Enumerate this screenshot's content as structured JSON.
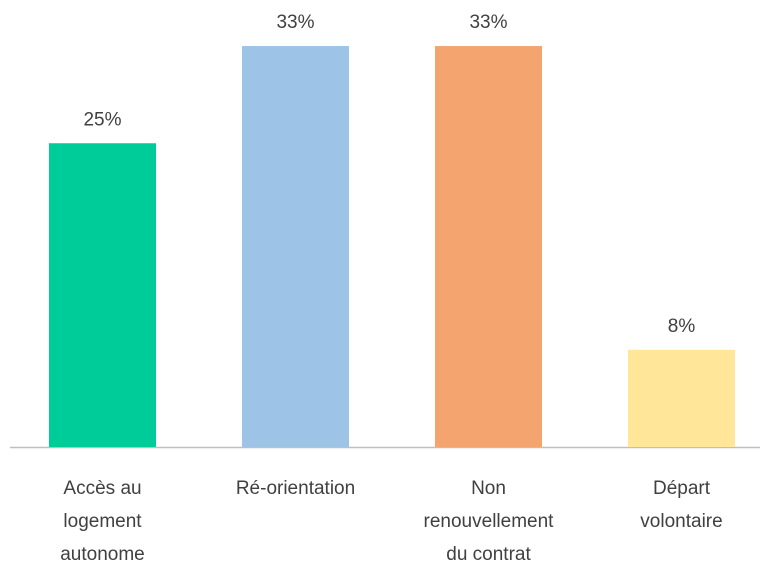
{
  "chart_data": {
    "type": "bar",
    "categories": [
      "Accès au logement autonome",
      "Ré-orientation",
      "Non renouvellement du contrat",
      "Départ volontaire"
    ],
    "values": [
      25,
      33,
      33,
      8
    ],
    "value_labels": [
      "25%",
      "33%",
      "33%",
      "8%"
    ],
    "colors": [
      "#00cc99",
      "#9dc3e6",
      "#f4a46e",
      "#ffe699"
    ]
  }
}
